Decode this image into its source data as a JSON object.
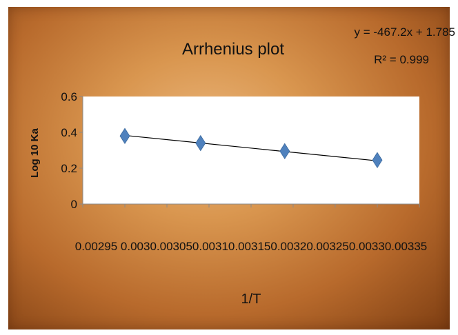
{
  "chart_data": {
    "type": "scatter",
    "title": "Arrhenius plot",
    "xlabel": "1/T",
    "ylabel": "Log 10 Ka",
    "xlim": [
      0.00295,
      0.00335
    ],
    "ylim": [
      0,
      0.6
    ],
    "x_tick_labels": [
      "0.00295",
      "0.003",
      "0.00305",
      "0.0031",
      "0.00315",
      "0.0032",
      "0.00325",
      "0.0033",
      "0.00335"
    ],
    "y_tick_labels": [
      "0",
      "0.2",
      "0.4",
      "0.6"
    ],
    "x_ticks": [
      0.00295,
      0.003,
      0.00305,
      0.0031,
      0.00315,
      0.0032,
      0.00325,
      0.0033,
      0.00335
    ],
    "y_ticks": [
      0,
      0.2,
      0.4,
      0.6
    ],
    "series": [
      {
        "x": [
          0.003,
          0.00309,
          0.00319,
          0.0033
        ],
        "y": [
          0.38,
          0.34,
          0.295,
          0.245
        ],
        "color": "#4f81bd"
      }
    ],
    "trendline": {
      "x": [
        0.003,
        0.0033
      ],
      "y": [
        0.383,
        0.241
      ],
      "equation": "y = -467.2x + 1.785",
      "r_squared": "R² = 0.999",
      "color": "#000000"
    },
    "grid": false,
    "legend": "none"
  }
}
